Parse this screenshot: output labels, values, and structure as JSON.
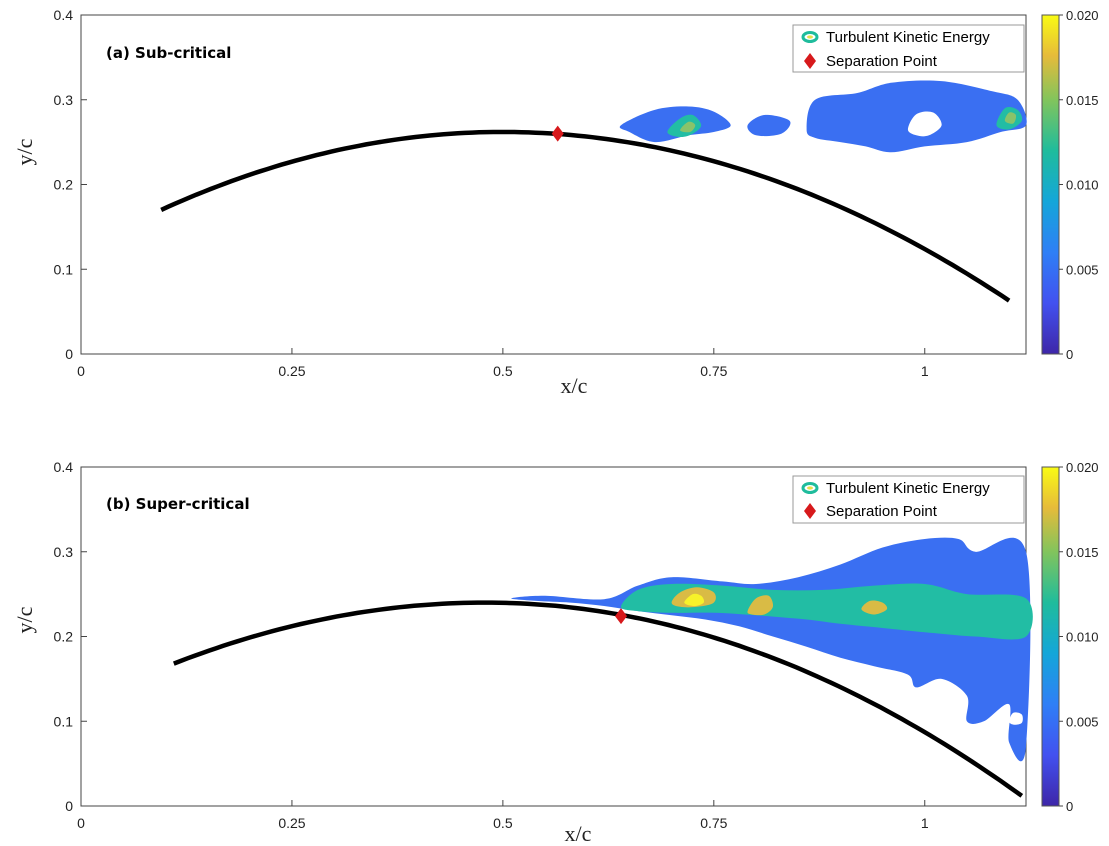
{
  "chart_data": [
    {
      "type": "contour",
      "title": "(a) Sub-critical",
      "xlabel": "x/c",
      "ylabel": "y/c",
      "xlim": [
        0,
        1.12
      ],
      "ylim": [
        0,
        0.4
      ],
      "x_ticks": [
        "0",
        "0.25",
        "0.5",
        "0.75",
        "1"
      ],
      "y_ticks": [
        "0",
        "0.1",
        "0.2",
        "0.3",
        "0.4"
      ],
      "grid": false,
      "legend_position": "top-right",
      "legend": [
        "Turbulent Kinetic Energy",
        "Separation Point"
      ],
      "colorbar": {
        "range": [
          0,
          0.02
        ],
        "ticks": [
          "0",
          "0.005",
          "0.010",
          "0.015",
          "0.020"
        ]
      },
      "surface": {
        "x_start": 0.095,
        "x_end": 1.1,
        "y_start": 0.17,
        "y_peak": 0.262,
        "x_peak": 0.5,
        "y_end": 0.063
      },
      "separation_point": {
        "x": 0.565,
        "y": 0.26
      },
      "tke_regions": [
        {
          "level": 0.004,
          "points": [
            [
              0.64,
              0.27
            ],
            [
              0.68,
              0.288
            ],
            [
              0.72,
              0.292
            ],
            [
              0.75,
              0.286
            ],
            [
              0.77,
              0.27
            ],
            [
              0.75,
              0.262
            ],
            [
              0.72,
              0.258
            ],
            [
              0.68,
              0.25
            ],
            [
              0.65,
              0.262
            ]
          ]
        },
        {
          "level": 0.004,
          "points": [
            [
              0.79,
              0.27
            ],
            [
              0.81,
              0.282
            ],
            [
              0.84,
              0.275
            ],
            [
              0.83,
              0.26
            ],
            [
              0.8,
              0.258
            ]
          ]
        },
        {
          "level": 0.004,
          "points": [
            [
              0.86,
              0.265
            ],
            [
              0.87,
              0.3
            ],
            [
              0.92,
              0.308
            ],
            [
              0.96,
              0.32
            ],
            [
              1.02,
              0.322
            ],
            [
              1.08,
              0.31
            ],
            [
              1.11,
              0.3
            ],
            [
              1.12,
              0.27
            ],
            [
              1.09,
              0.262
            ],
            [
              1.05,
              0.25
            ],
            [
              1.0,
              0.245
            ],
            [
              0.96,
              0.238
            ],
            [
              0.93,
              0.245
            ],
            [
              0.9,
              0.25
            ],
            [
              0.87,
              0.255
            ]
          ]
        },
        {
          "level": 0.007,
          "points": [
            [
              0.695,
              0.262
            ],
            [
              0.71,
              0.278
            ],
            [
              0.725,
              0.282
            ],
            [
              0.735,
              0.27
            ],
            [
              0.725,
              0.26
            ],
            [
              0.71,
              0.256
            ]
          ]
        },
        {
          "level": 0.007,
          "points": [
            [
              1.085,
              0.27
            ],
            [
              1.095,
              0.29
            ],
            [
              1.11,
              0.288
            ],
            [
              1.115,
              0.275
            ],
            [
              1.1,
              0.265
            ]
          ]
        },
        {
          "level": 0.01,
          "points": [
            [
              0.71,
              0.264
            ],
            [
              0.72,
              0.274
            ],
            [
              0.728,
              0.27
            ],
            [
              0.722,
              0.262
            ]
          ]
        },
        {
          "level": 0.01,
          "points": [
            [
              1.095,
              0.275
            ],
            [
              1.1,
              0.285
            ],
            [
              1.108,
              0.282
            ],
            [
              1.105,
              0.272
            ]
          ]
        }
      ],
      "holes": [
        {
          "points": [
            [
              0.98,
              0.265
            ],
            [
              0.99,
              0.283
            ],
            [
              1.01,
              0.285
            ],
            [
              1.02,
              0.27
            ],
            [
              1.005,
              0.258
            ],
            [
              0.99,
              0.258
            ]
          ]
        }
      ]
    },
    {
      "type": "contour",
      "title": "(b) Super-critical",
      "xlabel": "x/c",
      "ylabel": "y/c",
      "xlim": [
        0,
        1.12
      ],
      "ylim": [
        0,
        0.4
      ],
      "x_ticks": [
        "0",
        "0.25",
        "0.5",
        "0.75",
        "1"
      ],
      "y_ticks": [
        "0",
        "0.1",
        "0.2",
        "0.3",
        "0.4"
      ],
      "grid": false,
      "legend_position": "top-right",
      "legend": [
        "Turbulent Kinetic Energy",
        "Separation Point"
      ],
      "colorbar": {
        "range": [
          0,
          0.02
        ],
        "ticks": [
          "0",
          "0.005",
          "0.010",
          "0.015",
          "0.020"
        ]
      },
      "surface": {
        "x_start": 0.11,
        "x_end": 1.115,
        "y_start": 0.168,
        "y_peak": 0.24,
        "x_peak": 0.48,
        "y_end": 0.012
      },
      "separation_point": {
        "x": 0.64,
        "y": 0.224
      },
      "tke_regions": [
        {
          "level": 0.004,
          "points": [
            [
              0.51,
              0.245
            ],
            [
              0.55,
              0.248
            ],
            [
              0.62,
              0.244
            ],
            [
              0.66,
              0.26
            ],
            [
              0.7,
              0.27
            ],
            [
              0.76,
              0.265
            ],
            [
              0.8,
              0.262
            ],
            [
              0.85,
              0.27
            ],
            [
              0.9,
              0.285
            ],
            [
              0.95,
              0.305
            ],
            [
              1.0,
              0.315
            ],
            [
              1.04,
              0.315
            ],
            [
              1.06,
              0.3
            ],
            [
              1.12,
              0.3
            ],
            [
              1.12,
              0.07
            ],
            [
              1.1,
              0.075
            ],
            [
              1.1,
              0.12
            ],
            [
              1.07,
              0.1
            ],
            [
              1.05,
              0.1
            ],
            [
              1.05,
              0.13
            ],
            [
              1.02,
              0.15
            ],
            [
              0.99,
              0.14
            ],
            [
              0.98,
              0.155
            ],
            [
              0.94,
              0.165
            ],
            [
              0.9,
              0.175
            ],
            [
              0.86,
              0.188
            ],
            [
              0.82,
              0.2
            ],
            [
              0.78,
              0.212
            ],
            [
              0.74,
              0.22
            ],
            [
              0.7,
              0.225
            ],
            [
              0.66,
              0.23
            ],
            [
              0.62,
              0.236
            ],
            [
              0.58,
              0.24
            ],
            [
              0.54,
              0.242
            ]
          ]
        },
        {
          "level": 0.008,
          "points": [
            [
              0.64,
              0.235
            ],
            [
              0.66,
              0.255
            ],
            [
              0.7,
              0.262
            ],
            [
              0.76,
              0.26
            ],
            [
              0.82,
              0.255
            ],
            [
              0.88,
              0.255
            ],
            [
              0.94,
              0.26
            ],
            [
              1.0,
              0.262
            ],
            [
              1.05,
              0.25
            ],
            [
              1.12,
              0.245
            ],
            [
              1.12,
              0.2
            ],
            [
              1.06,
              0.2
            ],
            [
              1.0,
              0.205
            ],
            [
              0.95,
              0.21
            ],
            [
              0.9,
              0.215
            ],
            [
              0.86,
              0.22
            ],
            [
              0.8,
              0.225
            ],
            [
              0.75,
              0.228
            ],
            [
              0.7,
              0.228
            ],
            [
              0.66,
              0.23
            ]
          ]
        },
        {
          "level": 0.013,
          "points": [
            [
              0.7,
              0.24
            ],
            [
              0.71,
              0.252
            ],
            [
              0.73,
              0.258
            ],
            [
              0.75,
              0.252
            ],
            [
              0.75,
              0.24
            ],
            [
              0.73,
              0.235
            ],
            [
              0.71,
              0.235
            ]
          ]
        },
        {
          "level": 0.013,
          "points": [
            [
              0.79,
              0.23
            ],
            [
              0.8,
              0.245
            ],
            [
              0.815,
              0.248
            ],
            [
              0.82,
              0.235
            ],
            [
              0.81,
              0.226
            ],
            [
              0.795,
              0.226
            ]
          ]
        },
        {
          "level": 0.013,
          "points": [
            [
              0.925,
              0.232
            ],
            [
              0.935,
              0.242
            ],
            [
              0.95,
              0.24
            ],
            [
              0.955,
              0.232
            ],
            [
              0.94,
              0.226
            ]
          ]
        },
        {
          "level": 0.018,
          "points": [
            [
              0.715,
              0.24
            ],
            [
              0.725,
              0.25
            ],
            [
              0.735,
              0.248
            ],
            [
              0.738,
              0.24
            ],
            [
              0.727,
              0.236
            ]
          ]
        }
      ],
      "holes": [
        {
          "points": [
            [
              1.1,
              0.1
            ],
            [
              1.105,
              0.11
            ],
            [
              1.115,
              0.108
            ],
            [
              1.115,
              0.098
            ],
            [
              1.105,
              0.096
            ]
          ]
        }
      ]
    }
  ]
}
